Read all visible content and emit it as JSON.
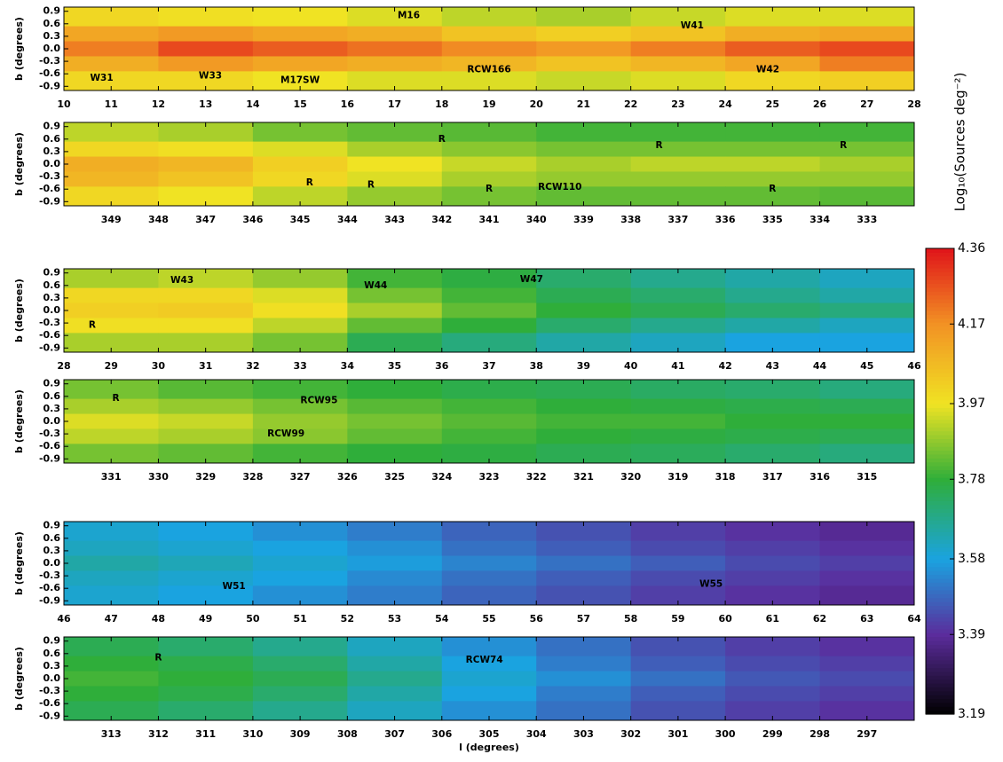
{
  "chart_data": [
    {
      "type": "heatmap",
      "ylabel": "b (degrees)",
      "xlim": [
        10,
        28
      ],
      "ylim": [
        -1,
        1
      ],
      "xticks": [
        10,
        11,
        12,
        13,
        14,
        15,
        16,
        17,
        18,
        19,
        20,
        21,
        22,
        23,
        24,
        25,
        26,
        27,
        28
      ],
      "yticks": [
        0.9,
        0.6,
        0.3,
        {
          "value": 0,
          "label": "0.0"
        },
        -0.3,
        -0.6,
        -0.9
      ],
      "x": [
        11,
        13,
        15,
        17,
        19,
        21,
        23,
        25,
        27
      ],
      "y": [
        0.72,
        0.36,
        0,
        -0.36,
        -0.72
      ],
      "z": [
        [
          4.0,
          3.98,
          3.97,
          3.95,
          3.92,
          3.9,
          3.93,
          3.95,
          3.95
        ],
        [
          4.12,
          4.15,
          4.12,
          4.1,
          4.05,
          4.02,
          4.05,
          4.1,
          4.12
        ],
        [
          4.2,
          4.28,
          4.25,
          4.22,
          4.18,
          4.15,
          4.2,
          4.25,
          4.28
        ],
        [
          4.1,
          4.15,
          4.12,
          4.1,
          4.08,
          4.05,
          4.08,
          4.12,
          4.2
        ],
        [
          4.0,
          4.0,
          3.97,
          3.95,
          3.95,
          3.93,
          3.95,
          4.0,
          4.02
        ]
      ],
      "annotations": [
        {
          "text": "W31",
          "x": 10.8,
          "y": -0.7
        },
        {
          "text": "W33",
          "x": 13.1,
          "y": -0.65
        },
        {
          "text": "M17SW",
          "x": 15,
          "y": -0.75
        },
        {
          "text": "M16",
          "x": 17.3,
          "y": 0.8
        },
        {
          "text": "RCW166",
          "x": 19,
          "y": -0.5
        },
        {
          "text": "W41",
          "x": 23.3,
          "y": 0.55
        },
        {
          "text": "W42",
          "x": 24.9,
          "y": -0.5
        }
      ]
    },
    {
      "type": "heatmap",
      "ylabel": "b (degrees)",
      "xlim": [
        350,
        332
      ],
      "ylim": [
        -1,
        1
      ],
      "xticks": [
        349,
        348,
        347,
        346,
        345,
        344,
        343,
        342,
        341,
        340,
        339,
        338,
        337,
        336,
        335,
        334,
        333
      ],
      "yticks": [
        0.9,
        0.6,
        0.3,
        {
          "value": 0,
          "label": "0.0"
        },
        -0.3,
        -0.6,
        -0.9
      ],
      "x": [
        349,
        347,
        345,
        343,
        341,
        339,
        337,
        335,
        333
      ],
      "y": [
        0.72,
        0.36,
        0,
        -0.36,
        -0.72
      ],
      "z": [
        [
          3.92,
          3.9,
          3.85,
          3.83,
          3.82,
          3.8,
          3.8,
          3.8,
          3.8
        ],
        [
          4.0,
          3.98,
          3.95,
          3.9,
          3.87,
          3.85,
          3.85,
          3.85,
          3.85
        ],
        [
          4.1,
          4.08,
          4.02,
          3.97,
          3.93,
          3.9,
          3.92,
          3.92,
          3.9
        ],
        [
          4.08,
          4.05,
          4.0,
          3.95,
          3.9,
          3.88,
          3.88,
          3.88,
          3.88
        ],
        [
          4.0,
          3.97,
          3.92,
          3.88,
          3.85,
          3.83,
          3.83,
          3.83,
          3.82
        ]
      ],
      "annotations": [
        {
          "text": "R",
          "x": 342,
          "y": 0.6
        },
        {
          "text": "R",
          "x": 337.4,
          "y": 0.45
        },
        {
          "text": "R",
          "x": 333.5,
          "y": 0.45
        },
        {
          "text": "R",
          "x": 344.8,
          "y": -0.45
        },
        {
          "text": "R",
          "x": 343.5,
          "y": -0.5
        },
        {
          "text": "R",
          "x": 341,
          "y": -0.6
        },
        {
          "text": "RCW110",
          "x": 339.5,
          "y": -0.55
        },
        {
          "text": "R",
          "x": 335,
          "y": -0.6
        }
      ]
    },
    {
      "type": "heatmap",
      "ylabel": "b (degrees)",
      "xlim": [
        28,
        46
      ],
      "ylim": [
        -1,
        1
      ],
      "xticks": [
        28,
        29,
        30,
        31,
        32,
        33,
        34,
        35,
        36,
        37,
        38,
        39,
        40,
        41,
        42,
        43,
        44,
        45,
        46
      ],
      "yticks": [
        0.9,
        0.6,
        0.3,
        {
          "value": 0,
          "label": "0.0"
        },
        -0.3,
        -0.6,
        -0.9
      ],
      "x": [
        29,
        31,
        33,
        35,
        37,
        39,
        41,
        43,
        45
      ],
      "y": [
        0.72,
        0.36,
        0,
        -0.36,
        -0.72
      ],
      "z": [
        [
          3.9,
          3.92,
          3.88,
          3.8,
          3.77,
          3.72,
          3.68,
          3.65,
          3.62
        ],
        [
          4.0,
          4.0,
          3.95,
          3.85,
          3.8,
          3.75,
          3.72,
          3.68,
          3.65
        ],
        [
          4.02,
          4.03,
          3.98,
          3.9,
          3.83,
          3.78,
          3.75,
          3.72,
          3.7
        ],
        [
          3.98,
          3.98,
          3.92,
          3.83,
          3.78,
          3.72,
          3.68,
          3.65,
          3.62
        ],
        [
          3.9,
          3.9,
          3.85,
          3.75,
          3.7,
          3.65,
          3.62,
          3.58,
          3.58
        ]
      ],
      "annotations": [
        {
          "text": "W43",
          "x": 30.5,
          "y": 0.72
        },
        {
          "text": "W44",
          "x": 34.6,
          "y": 0.6
        },
        {
          "text": "W47",
          "x": 37.9,
          "y": 0.75
        },
        {
          "text": "R",
          "x": 28.6,
          "y": -0.35
        }
      ]
    },
    {
      "type": "heatmap",
      "ylabel": "b (degrees)",
      "xlim": [
        332,
        314
      ],
      "ylim": [
        -1,
        1
      ],
      "xticks": [
        331,
        330,
        329,
        328,
        327,
        326,
        325,
        324,
        323,
        322,
        321,
        320,
        319,
        318,
        317,
        316,
        315
      ],
      "yticks": [
        0.9,
        0.6,
        0.3,
        {
          "value": 0,
          "label": "0.0"
        },
        -0.3,
        -0.6,
        -0.9
      ],
      "x": [
        331,
        329,
        327,
        325,
        323,
        321,
        319,
        317,
        315
      ],
      "y": [
        0.72,
        0.36,
        0,
        -0.36,
        -0.72
      ],
      "z": [
        [
          3.85,
          3.82,
          3.8,
          3.78,
          3.76,
          3.75,
          3.73,
          3.72,
          3.7
        ],
        [
          3.9,
          3.88,
          3.85,
          3.82,
          3.8,
          3.78,
          3.77,
          3.76,
          3.75
        ],
        [
          3.95,
          3.93,
          3.88,
          3.85,
          3.82,
          3.8,
          3.8,
          3.78,
          3.78
        ],
        [
          3.92,
          3.9,
          3.87,
          3.83,
          3.8,
          3.78,
          3.77,
          3.76,
          3.75
        ],
        [
          3.85,
          3.83,
          3.8,
          3.78,
          3.77,
          3.75,
          3.74,
          3.72,
          3.7
        ]
      ],
      "annotations": [
        {
          "text": "R",
          "x": 330.9,
          "y": 0.55
        },
        {
          "text": "RCW95",
          "x": 326.6,
          "y": 0.5
        },
        {
          "text": "RCW99",
          "x": 327.3,
          "y": -0.3
        }
      ]
    },
    {
      "type": "heatmap",
      "ylabel": "b (degrees)",
      "xlim": [
        46,
        64
      ],
      "ylim": [
        -1,
        1
      ],
      "xticks": [
        46,
        47,
        48,
        49,
        50,
        51,
        52,
        53,
        54,
        55,
        56,
        57,
        58,
        59,
        60,
        61,
        62,
        63,
        64
      ],
      "yticks": [
        0.9,
        0.6,
        0.3,
        {
          "value": 0,
          "label": "0.0"
        },
        -0.3,
        -0.6,
        -0.9
      ],
      "x": [
        47,
        49,
        51,
        53,
        55,
        57,
        59,
        61,
        63
      ],
      "y": [
        0.72,
        0.36,
        0,
        -0.36,
        -0.72
      ],
      "z": [
        [
          3.6,
          3.58,
          3.55,
          3.52,
          3.48,
          3.45,
          3.42,
          3.4,
          3.38
        ],
        [
          3.62,
          3.6,
          3.58,
          3.55,
          3.5,
          3.47,
          3.44,
          3.42,
          3.4
        ],
        [
          3.65,
          3.63,
          3.6,
          3.57,
          3.53,
          3.5,
          3.47,
          3.44,
          3.42
        ],
        [
          3.62,
          3.6,
          3.58,
          3.54,
          3.5,
          3.47,
          3.44,
          3.42,
          3.4
        ],
        [
          3.6,
          3.58,
          3.55,
          3.52,
          3.48,
          3.45,
          3.42,
          3.4,
          3.38
        ]
      ],
      "annotations": [
        {
          "text": "W51",
          "x": 49.6,
          "y": -0.55
        },
        {
          "text": "W55",
          "x": 59.7,
          "y": -0.5
        }
      ]
    },
    {
      "type": "heatmap",
      "ylabel": "b (degrees)",
      "xlabel": "l (degrees)",
      "xlim": [
        314,
        296
      ],
      "ylim": [
        -1,
        1
      ],
      "xticks": [
        313,
        312,
        311,
        310,
        309,
        308,
        307,
        306,
        305,
        304,
        303,
        302,
        301,
        300,
        299,
        298,
        297
      ],
      "yticks": [
        0.9,
        0.6,
        0.3,
        {
          "value": 0,
          "label": "0.0"
        },
        -0.3,
        -0.6,
        -0.9
      ],
      "x": [
        313,
        311,
        309,
        307,
        305,
        303,
        301,
        299,
        297
      ],
      "y": [
        0.72,
        0.36,
        0,
        -0.36,
        -0.72
      ],
      "z": [
        [
          3.75,
          3.72,
          3.68,
          3.62,
          3.55,
          3.5,
          3.45,
          3.42,
          3.4
        ],
        [
          3.78,
          3.76,
          3.72,
          3.65,
          3.58,
          3.52,
          3.47,
          3.44,
          3.42
        ],
        [
          3.8,
          3.78,
          3.75,
          3.68,
          3.6,
          3.55,
          3.5,
          3.46,
          3.44
        ],
        [
          3.78,
          3.76,
          3.72,
          3.65,
          3.58,
          3.52,
          3.47,
          3.44,
          3.42
        ],
        [
          3.75,
          3.72,
          3.68,
          3.62,
          3.55,
          3.5,
          3.45,
          3.42,
          3.4
        ]
      ],
      "annotations": [
        {
          "text": "R",
          "x": 312,
          "y": 0.5
        },
        {
          "text": "RCW74",
          "x": 305.1,
          "y": 0.45
        }
      ]
    }
  ],
  "colorbar": {
    "label": "Log₁₀(Sources deg⁻²)",
    "lim": [
      3.19,
      4.36
    ],
    "ticks": [
      3.19,
      3.39,
      3.58,
      3.78,
      3.97,
      4.17,
      4.36
    ],
    "colors": [
      "#000000",
      "#5b2c9c",
      "#1aa3e0",
      "#2fae3a",
      "#f0e323",
      "#f29224",
      "#e0141a"
    ]
  }
}
